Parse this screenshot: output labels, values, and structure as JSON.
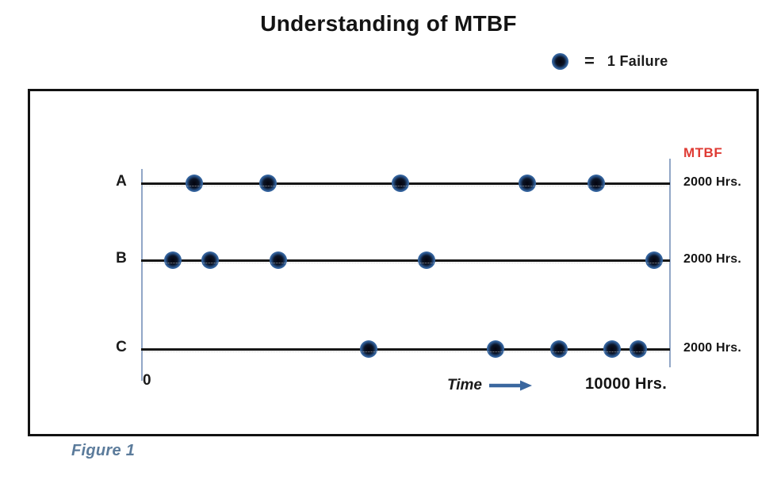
{
  "title": "Understanding of MTBF",
  "legend": {
    "equals": "=",
    "label": "1 Failure"
  },
  "frame": {
    "mtbf_header": "MTBF"
  },
  "axis": {
    "origin": "0",
    "time_label": "Time",
    "max_label": "10000 Hrs."
  },
  "caption": "Figure 1",
  "colors": {
    "mtbf_red": "#df3b34",
    "caption_blue": "#5b7b9b",
    "axis_blue": "#92a7c7",
    "arrow_blue": "#3a679f",
    "dot_ring_blue": "#31609a",
    "line_black": "#161616"
  },
  "chart_data": {
    "type": "scatter",
    "title": "Understanding of MTBF",
    "xlabel": "Time",
    "x_range_hours": [
      0,
      10000
    ],
    "x_max_label": "10000 Hrs.",
    "legend_note": "1 dot = 1 Failure",
    "grid": false,
    "series": [
      {
        "name": "A",
        "failure_times_hours": [
          1000,
          2400,
          4900,
          7300,
          8600
        ],
        "failures": 5,
        "mtbf_label": "2000 Hrs."
      },
      {
        "name": "B",
        "failure_times_hours": [
          600,
          1300,
          2600,
          5400,
          9700
        ],
        "failures": 5,
        "mtbf_label": "2000 Hrs."
      },
      {
        "name": "C",
        "failure_times_hours": [
          4300,
          6700,
          7900,
          8900,
          9400
        ],
        "failures": 5,
        "mtbf_label": "2000 Hrs."
      }
    ]
  }
}
